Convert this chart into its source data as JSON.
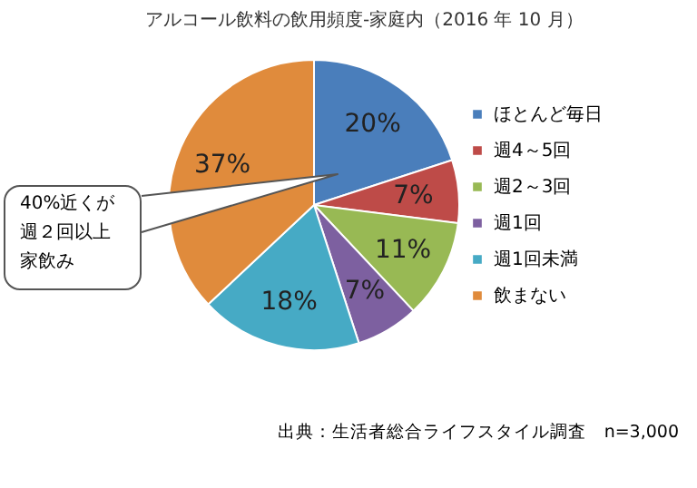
{
  "chart_data": {
    "type": "pie",
    "title": "アルコール飲料の飲用頻度-家庭内（2016 年 10 月）",
    "categories": [
      "ほとんど毎日",
      "週4～5回",
      "週2～3回",
      "週1回",
      "週1回未満",
      "飲まない"
    ],
    "values": [
      20,
      7,
      11,
      7,
      18,
      37
    ],
    "value_labels": [
      "20%",
      "7%",
      "11%",
      "7%",
      "18%",
      "37%"
    ],
    "colors": [
      "#4a7ebb",
      "#be4b48",
      "#98b954",
      "#7d60a0",
      "#46aac5",
      "#e08b3c"
    ],
    "legend": "right",
    "annotations": [
      "40%近くが週２回以上家飲み",
      "出典：生活者総合ライフスタイル調査　n=3,000"
    ]
  }
}
